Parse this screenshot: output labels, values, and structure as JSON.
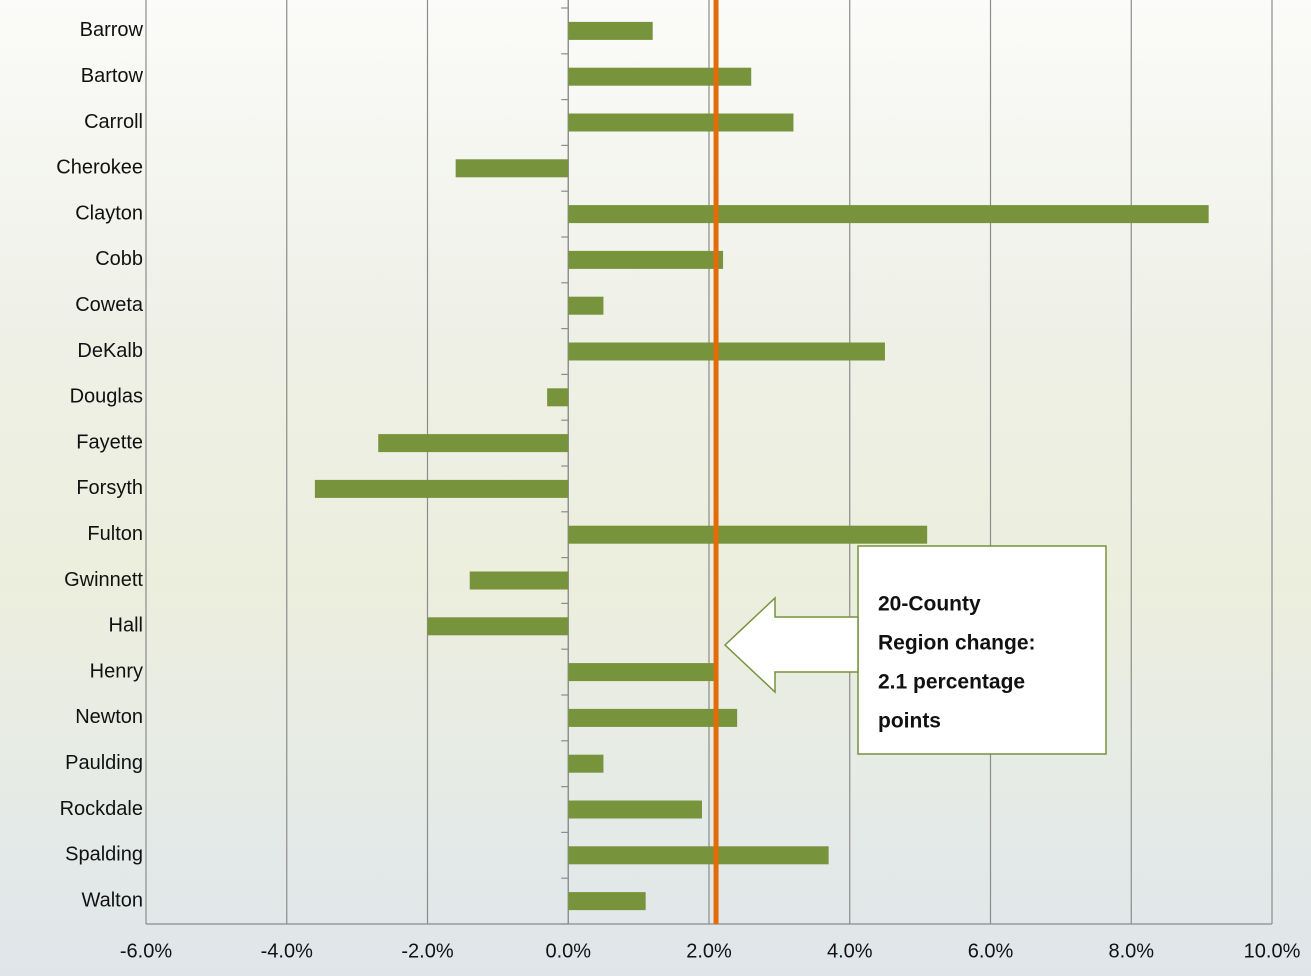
{
  "chart_data": {
    "type": "barh",
    "categories": [
      "Barrow",
      "Bartow",
      "Carroll",
      "Cherokee",
      "Clayton",
      "Cobb",
      "Coweta",
      "DeKalb",
      "Douglas",
      "Fayette",
      "Forsyth",
      "Fulton",
      "Gwinnett",
      "Hall",
      "Henry",
      "Newton",
      "Paulding",
      "Rockdale",
      "Spalding",
      "Walton"
    ],
    "values": [
      1.2,
      2.6,
      3.2,
      -1.6,
      9.1,
      2.2,
      0.5,
      4.5,
      -0.3,
      -2.7,
      -3.6,
      5.1,
      -1.4,
      -2.0,
      2.1,
      2.4,
      0.5,
      1.9,
      3.7,
      1.1
    ],
    "color": "#77933c",
    "xlim": [
      -6,
      10
    ],
    "xticks": [
      {
        "value": -6,
        "label": "-6.0%"
      },
      {
        "value": -4,
        "label": "-4.0%"
      },
      {
        "value": -2,
        "label": "-2.0%"
      },
      {
        "value": 0,
        "label": "0.0%"
      },
      {
        "value": 2,
        "label": "2.0%"
      },
      {
        "value": 4,
        "label": "4.0%"
      },
      {
        "value": 6,
        "label": "6.0%"
      },
      {
        "value": 8,
        "label": "8.0%"
      },
      {
        "value": 10,
        "label": "10.0%"
      }
    ],
    "grid": true,
    "reference_line": {
      "value": 2.1,
      "color": "#e36c09"
    },
    "annotation": [
      "20-County",
      "Region change:",
      "2.1 percentage",
      "points"
    ]
  }
}
